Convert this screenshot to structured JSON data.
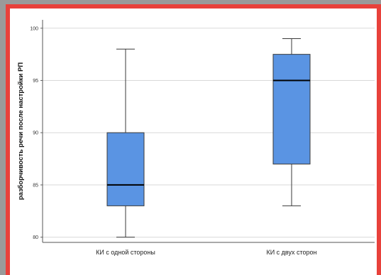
{
  "colors": {
    "frame": "#e8413b",
    "box_fill": "#5a94e3",
    "box_stroke": "#3a3a3a",
    "median": "#000000",
    "grid": "#d9d9d9"
  },
  "chart_data": {
    "type": "boxplot",
    "title": "",
    "xlabel": "",
    "ylabel": "разборчивость речи после настройки РП",
    "ylim": [
      79.5,
      100.8
    ],
    "yticks": [
      80,
      85,
      90,
      95,
      100
    ],
    "ytick_labels": [
      "80",
      "85",
      "90",
      "95",
      "100"
    ],
    "grid": true,
    "categories": [
      "КИ с одной стороны",
      "КИ с двух сторон"
    ],
    "boxes": [
      {
        "category": "КИ с одной стороны",
        "min": 80,
        "q1": 83,
        "median": 85,
        "q3": 90,
        "max": 98
      },
      {
        "category": "КИ с двух сторон",
        "min": 83,
        "q1": 87,
        "median": 95,
        "q3": 97.5,
        "max": 99
      }
    ]
  }
}
